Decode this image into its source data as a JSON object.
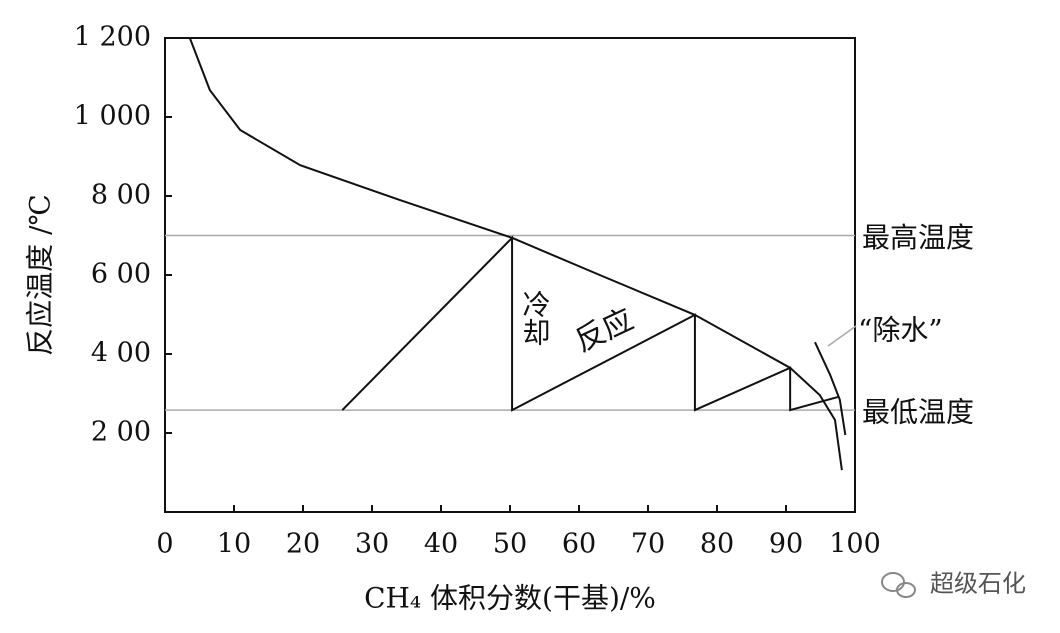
{
  "chart_data": {
    "type": "line",
    "xlabel": "CH₄ 体积分数(干基)/%",
    "ylabel": "反应温度 /℃",
    "xlim": [
      0,
      100
    ],
    "xticks": [
      0,
      10,
      20,
      30,
      40,
      50,
      60,
      70,
      80,
      90,
      100
    ],
    "ylim": [
      0,
      1200
    ],
    "yticks": [
      {
        "value": 200,
        "label": "2 00"
      },
      {
        "value": 400,
        "label": "4 00"
      },
      {
        "value": 600,
        "label": "6 00"
      },
      {
        "value": 800,
        "label": "8 00"
      },
      {
        "value": 1000,
        "label": "1 000"
      },
      {
        "value": 1200,
        "label": "1 200"
      }
    ],
    "series": [
      {
        "color": "#111111",
        "x": [
          3.6,
          6.5,
          10.9,
          19.6,
          34,
          50.3,
          63,
          76.8,
          90.6,
          94.9,
          97.1,
          98.1
        ],
        "values": [
          1200,
          1068,
          967,
          878,
          790,
          694,
          600,
          499,
          365,
          296,
          233,
          106
        ]
      },
      {
        "color": "#111111",
        "x": [
          25.7,
          50.3,
          50.3,
          76.8,
          76.8,
          90.6,
          90.6,
          97.5
        ],
        "values": [
          258,
          694,
          258,
          499,
          258,
          365,
          258,
          291
        ]
      },
      {
        "color": "#111111",
        "x": [
          94.2,
          96.4,
          97.8,
          98.6
        ],
        "values": [
          430,
          347,
          284,
          195
        ]
      }
    ],
    "hlines": [
      {
        "value": 700,
        "label": "最高温度",
        "color": "#aaaaaa"
      },
      {
        "value": 258,
        "label": "最低温度",
        "color": "#aaaaaa"
      }
    ],
    "annotations": [
      "冷却",
      "反应",
      "“除水”"
    ],
    "watermark": "超级石化"
  }
}
